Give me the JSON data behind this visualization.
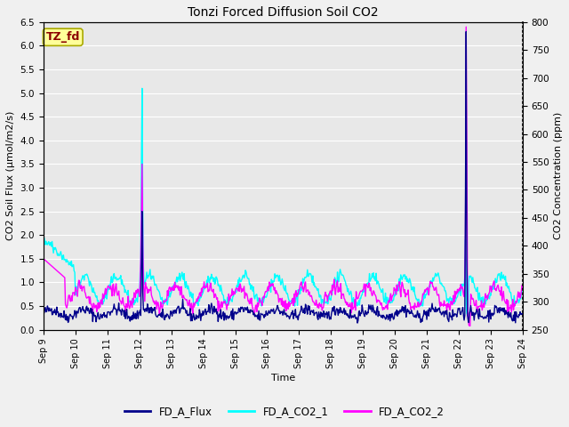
{
  "title": "Tonzi Forced Diffusion Soil CO2",
  "xlabel": "Time",
  "ylabel_left": "CO2 Soil Flux (μmol/m2/s)",
  "ylabel_right": "CO2 Concentration (ppm)",
  "ylim_left": [
    0.0,
    6.5
  ],
  "ylim_right": [
    250,
    800
  ],
  "yticks_left": [
    0.0,
    0.5,
    1.0,
    1.5,
    2.0,
    2.5,
    3.0,
    3.5,
    4.0,
    4.5,
    5.0,
    5.5,
    6.0,
    6.5
  ],
  "yticks_right": [
    250,
    300,
    350,
    400,
    450,
    500,
    550,
    600,
    650,
    700,
    750,
    800
  ],
  "xtick_labels": [
    "Sep 9",
    "Sep 10",
    "Sep 11",
    "Sep 12",
    "Sep 13",
    "Sep 14",
    "Sep 15",
    "Sep 16",
    "Sep 17",
    "Sep 18",
    "Sep 19",
    "Sep 20",
    "Sep 21",
    "Sep 22",
    "Sep 23",
    "Sep 24"
  ],
  "colors": {
    "FD_A_Flux": "#00008B",
    "FD_A_CO2_1": "#00FFFF",
    "FD_A_CO2_2": "#FF00FF"
  },
  "linewidths": {
    "FD_A_Flux": 1.0,
    "FD_A_CO2_1": 1.0,
    "FD_A_CO2_2": 1.0
  },
  "annotation_text": "TZ_fd",
  "annotation_color": "#8B0000",
  "annotation_bg": "#FFFF99",
  "background_color": "#E8E8E8",
  "grid_color": "#FFFFFF",
  "fig_bg_color": "#F0F0F0"
}
